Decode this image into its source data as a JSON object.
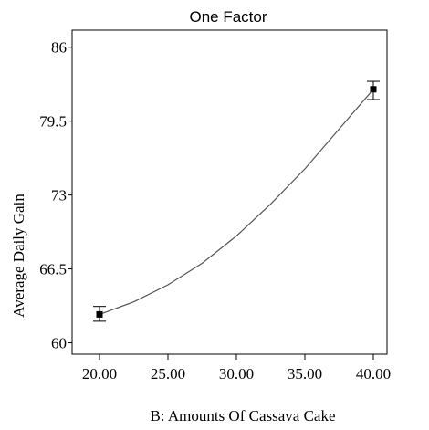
{
  "chart_data": {
    "type": "line",
    "title": "One Factor",
    "xlabel": "B: Amounts Of Cassava Cake",
    "ylabel": "Average Daily Gain",
    "xlim": [
      18.0,
      41.0
    ],
    "ylim": [
      59.0,
      87.5
    ],
    "x_ticks": [
      20.0,
      25.0,
      30.0,
      35.0,
      40.0
    ],
    "x_tick_labels": [
      "20.00",
      "25.00",
      "30.00",
      "35.00",
      "40.00"
    ],
    "y_ticks": [
      60,
      66.5,
      73,
      79.5,
      86
    ],
    "y_tick_labels": [
      "60",
      "66.5",
      "73",
      "79.5",
      "86"
    ],
    "fit_curve": {
      "x": [
        20,
        22.5,
        25,
        27.5,
        30,
        32.5,
        35,
        37.5,
        40
      ],
      "y": [
        62.5,
        63.6,
        65.1,
        67.0,
        69.4,
        72.2,
        75.3,
        78.8,
        82.3
      ]
    },
    "points": [
      {
        "x": 20,
        "y": 62.5,
        "err_low": 61.9,
        "err_high": 63.2
      },
      {
        "x": 40,
        "y": 82.3,
        "err_low": 81.4,
        "err_high": 83.0
      }
    ],
    "grid": false,
    "colors": {
      "line": "#555555",
      "marker": "#000000"
    }
  }
}
